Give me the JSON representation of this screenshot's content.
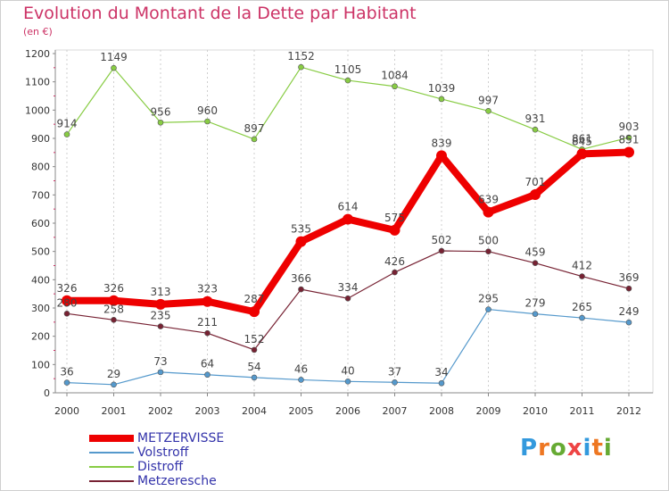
{
  "page": {
    "title": "Evolution du Montant de la Dette par Habitant",
    "unit": "(en €)",
    "logo": "Proxiti"
  },
  "chart_data": {
    "type": "line",
    "title": "Evolution du Montant de la Dette par Habitant",
    "subtitle": "(en €)",
    "xlabel": "",
    "ylabel": "",
    "ylim": [
      0,
      1200
    ],
    "yticks": [
      0,
      100,
      200,
      300,
      400,
      500,
      600,
      700,
      800,
      900,
      1000,
      1100,
      1200
    ],
    "grid": "vertical",
    "legend_position": "bottom-left",
    "categories": [
      "2000",
      "2001",
      "2002",
      "2003",
      "2004",
      "2005",
      "2006",
      "2007",
      "2008",
      "2009",
      "2010",
      "2011",
      "2012"
    ],
    "series": [
      {
        "name": "METZERVISSE",
        "color": "#ee0000",
        "values": [
          326,
          326,
          313,
          323,
          287,
          535,
          614,
          575,
          839,
          639,
          701,
          845,
          851
        ],
        "labels": [
          "326",
          "326",
          "313",
          "323",
          "287",
          "535",
          "614",
          "575",
          "839",
          "639",
          "701",
          "845",
          "851"
        ]
      },
      {
        "name": "Volstroff",
        "color": "#5599cc",
        "values": [
          36,
          29,
          73,
          64,
          54,
          46,
          40,
          37,
          34,
          295,
          279,
          265,
          249
        ],
        "labels": [
          "36",
          "29",
          "73",
          "64",
          "54",
          "46",
          "40",
          "37",
          "34",
          "295",
          "279",
          "265",
          "249"
        ]
      },
      {
        "name": "Distroff",
        "color": "#88cc44",
        "values": [
          914,
          1149,
          956,
          960,
          897,
          1152,
          1105,
          1084,
          1039,
          997,
          931,
          861,
          903
        ],
        "labels": [
          "914",
          "1149",
          "956",
          "960",
          "897",
          "1152",
          "1105",
          "1084",
          "1039",
          "997",
          "931",
          "861",
          "903"
        ]
      },
      {
        "name": "Metzeresche",
        "color": "#772233",
        "values": [
          280,
          258,
          235,
          211,
          152,
          366,
          334,
          426,
          502,
          500,
          459,
          412,
          369
        ],
        "labels": [
          "280",
          "258",
          "235",
          "211",
          "152",
          "366",
          "334",
          "426",
          "502",
          "500",
          "459",
          "412",
          "369"
        ]
      }
    ]
  }
}
